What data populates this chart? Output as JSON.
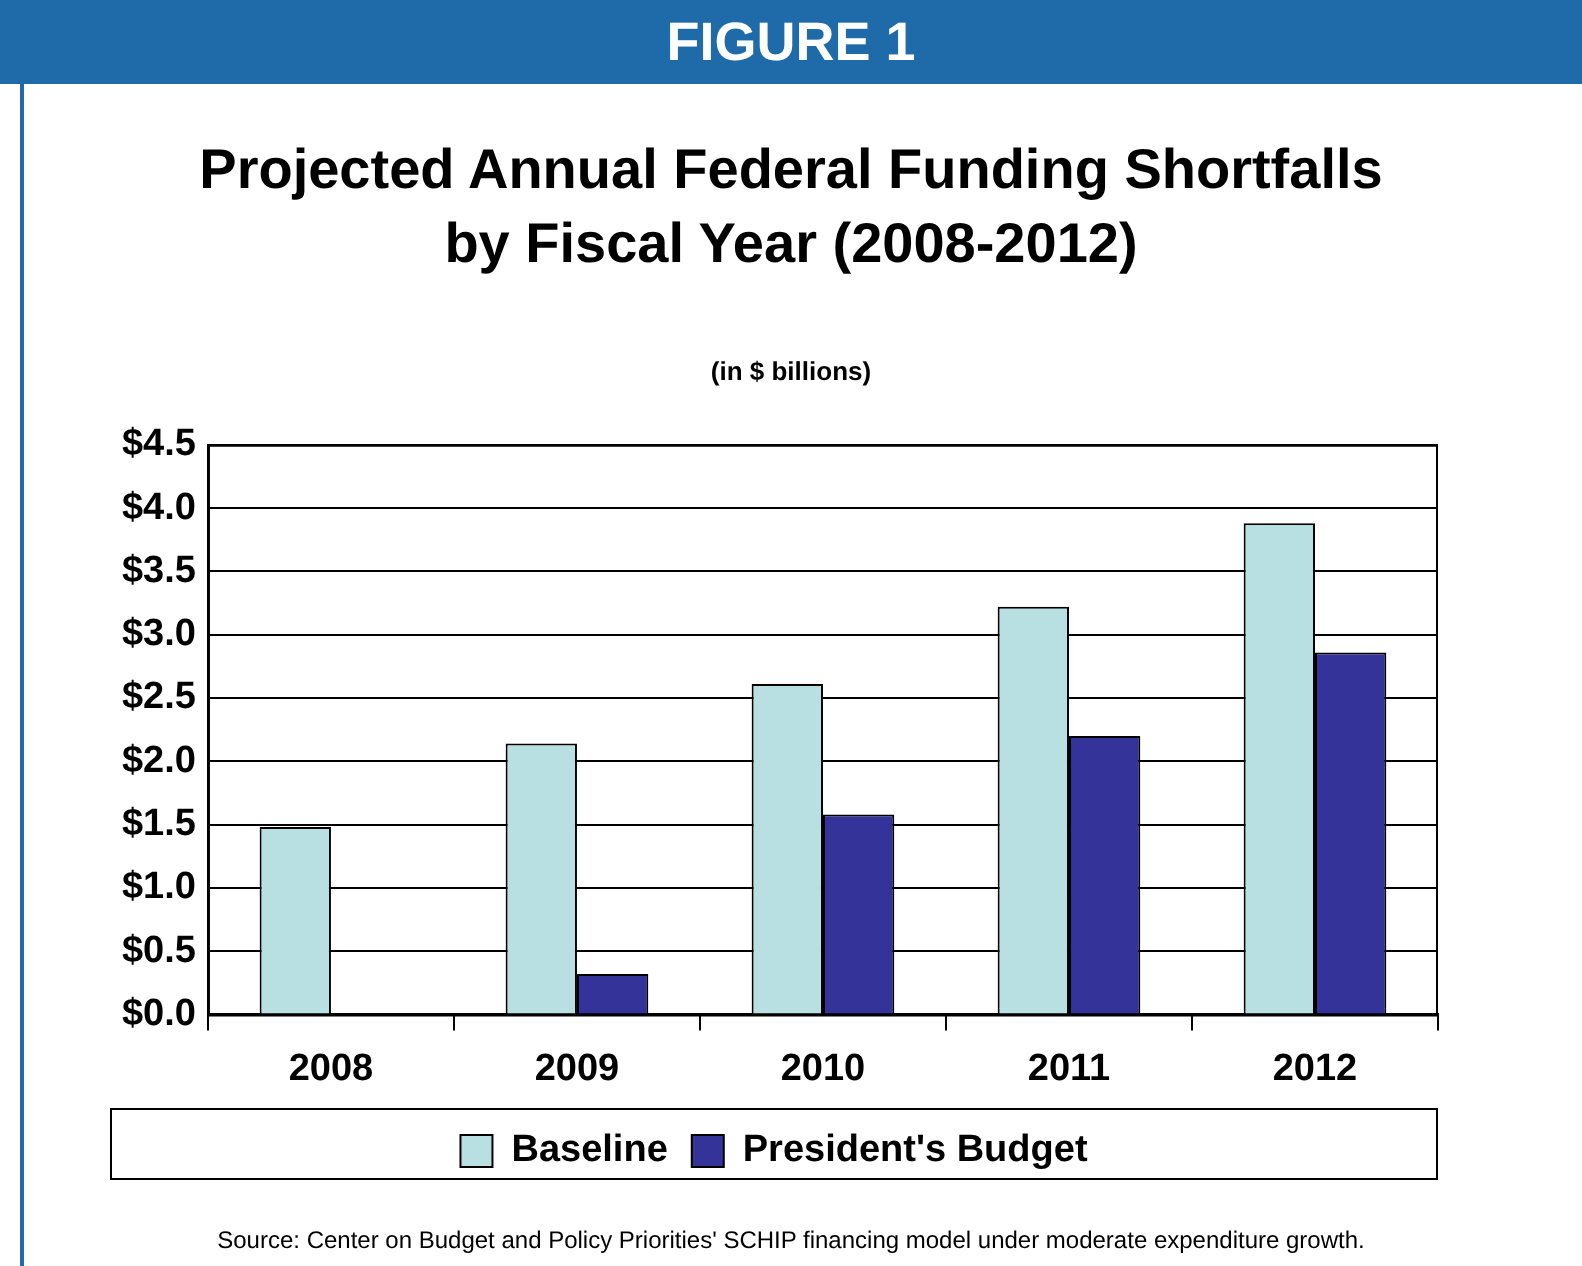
{
  "chart_data": {
    "type": "bar",
    "title": "Projected Annual Federal Funding Shortfalls\nby Fiscal Year (2008-2012)",
    "subtitle": "(in $ billions)",
    "categories": [
      "2008",
      "2009",
      "2010",
      "2011",
      "2012"
    ],
    "series": [
      {
        "name": "Baseline",
        "color": "#b8e0e3",
        "values": [
          1.48,
          2.14,
          2.61,
          3.22,
          3.88
        ]
      },
      {
        "name": "President's Budget",
        "color": "#333399",
        "values": [
          null,
          0.32,
          1.58,
          2.2,
          2.86
        ]
      }
    ],
    "ylim": [
      0,
      4.5
    ],
    "yticks": [
      {
        "value": 0,
        "label": "$0.0"
      },
      {
        "value": 0.5,
        "label": "$0.5"
      },
      {
        "value": 1,
        "label": "$1.0"
      },
      {
        "value": 1.5,
        "label": "$1.5"
      },
      {
        "value": 2,
        "label": "$2.0"
      },
      {
        "value": 2.5,
        "label": "$2.5"
      },
      {
        "value": 3,
        "label": "$3.0"
      },
      {
        "value": 3.5,
        "label": "$3.5"
      },
      {
        "value": 4,
        "label": "$4.0"
      },
      {
        "value": 4.5,
        "label": "$4.5"
      }
    ],
    "grid": "y",
    "legend": "bottom",
    "annotations": [
      "FIGURE 1",
      "Source:  Center on Budget and Policy Priorities' SCHIP financing model under moderate expenditure growth."
    ]
  }
}
